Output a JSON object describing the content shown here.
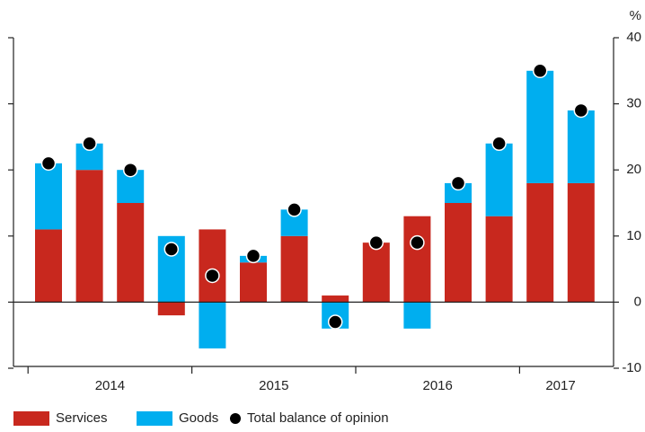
{
  "chart_data": {
    "type": "stacked_bar_dot",
    "y_unit": "%",
    "categories": [
      null,
      null,
      null,
      null,
      null,
      null,
      null,
      null,
      null,
      null,
      null,
      null,
      null,
      null
    ],
    "x_groups": [
      {
        "label": "2014",
        "count": 4
      },
      {
        "label": "2015",
        "count": 4
      },
      {
        "label": "2016",
        "count": 4
      },
      {
        "label": "2017",
        "count": 2
      }
    ],
    "series": [
      {
        "name": "Services",
        "color": "#c8281e",
        "kind": "bar",
        "values": [
          11,
          20,
          15,
          -2,
          11,
          6,
          10,
          1,
          9,
          13,
          15,
          13,
          18,
          18
        ]
      },
      {
        "name": "Goods",
        "color": "#00aeef",
        "kind": "bar",
        "values": [
          10,
          4,
          5,
          10,
          -7,
          1,
          4,
          -4,
          0,
          -4,
          3,
          11,
          17,
          11
        ]
      },
      {
        "name": "Total balance of opinion",
        "color": "#000000",
        "kind": "dot",
        "values": [
          21,
          24,
          20,
          8,
          4,
          7,
          14,
          -3,
          9,
          9,
          18,
          24,
          35,
          29
        ]
      }
    ],
    "ylim": [
      -10,
      40
    ],
    "yticks": [
      -10,
      0,
      10,
      20,
      30,
      40
    ]
  }
}
